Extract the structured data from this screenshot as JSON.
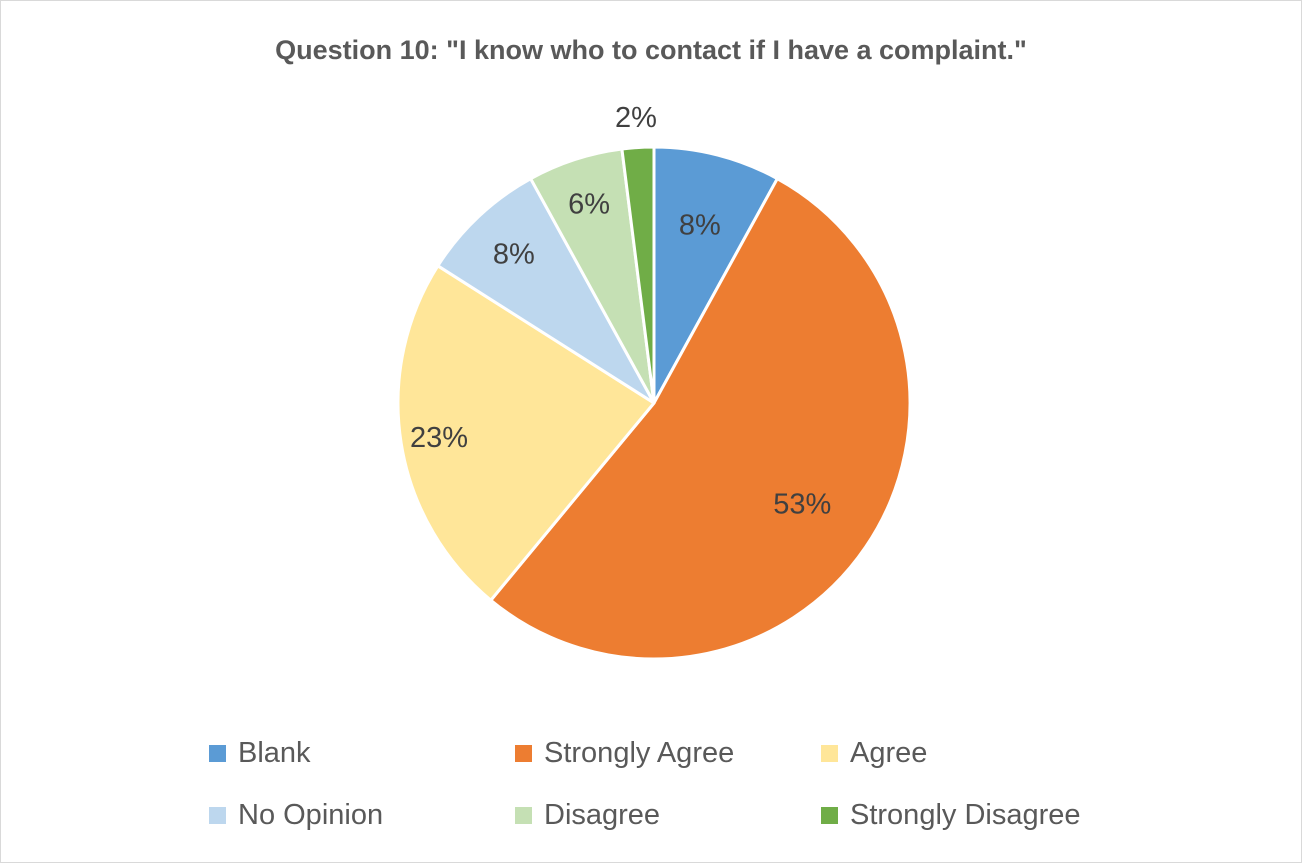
{
  "chart_data": {
    "type": "pie",
    "title": "Question 10: \"I know who to contact if I have a complaint.\"",
    "categories": [
      "Blank",
      "Strongly Agree",
      "Agree",
      "No Opinion",
      "Disagree",
      "Strongly Disagree"
    ],
    "values": [
      8,
      53,
      23,
      8,
      6,
      2
    ],
    "data_labels": [
      "8%",
      "53%",
      "23%",
      "8%",
      "6%",
      "2%"
    ],
    "colors": [
      "#5b9bd5",
      "#ed7d31",
      "#ffe699",
      "#bdd7ee",
      "#c5e0b4",
      "#70ad47"
    ],
    "legend_position": "bottom",
    "start_angle": "12 o'clock",
    "direction": "clockwise"
  }
}
